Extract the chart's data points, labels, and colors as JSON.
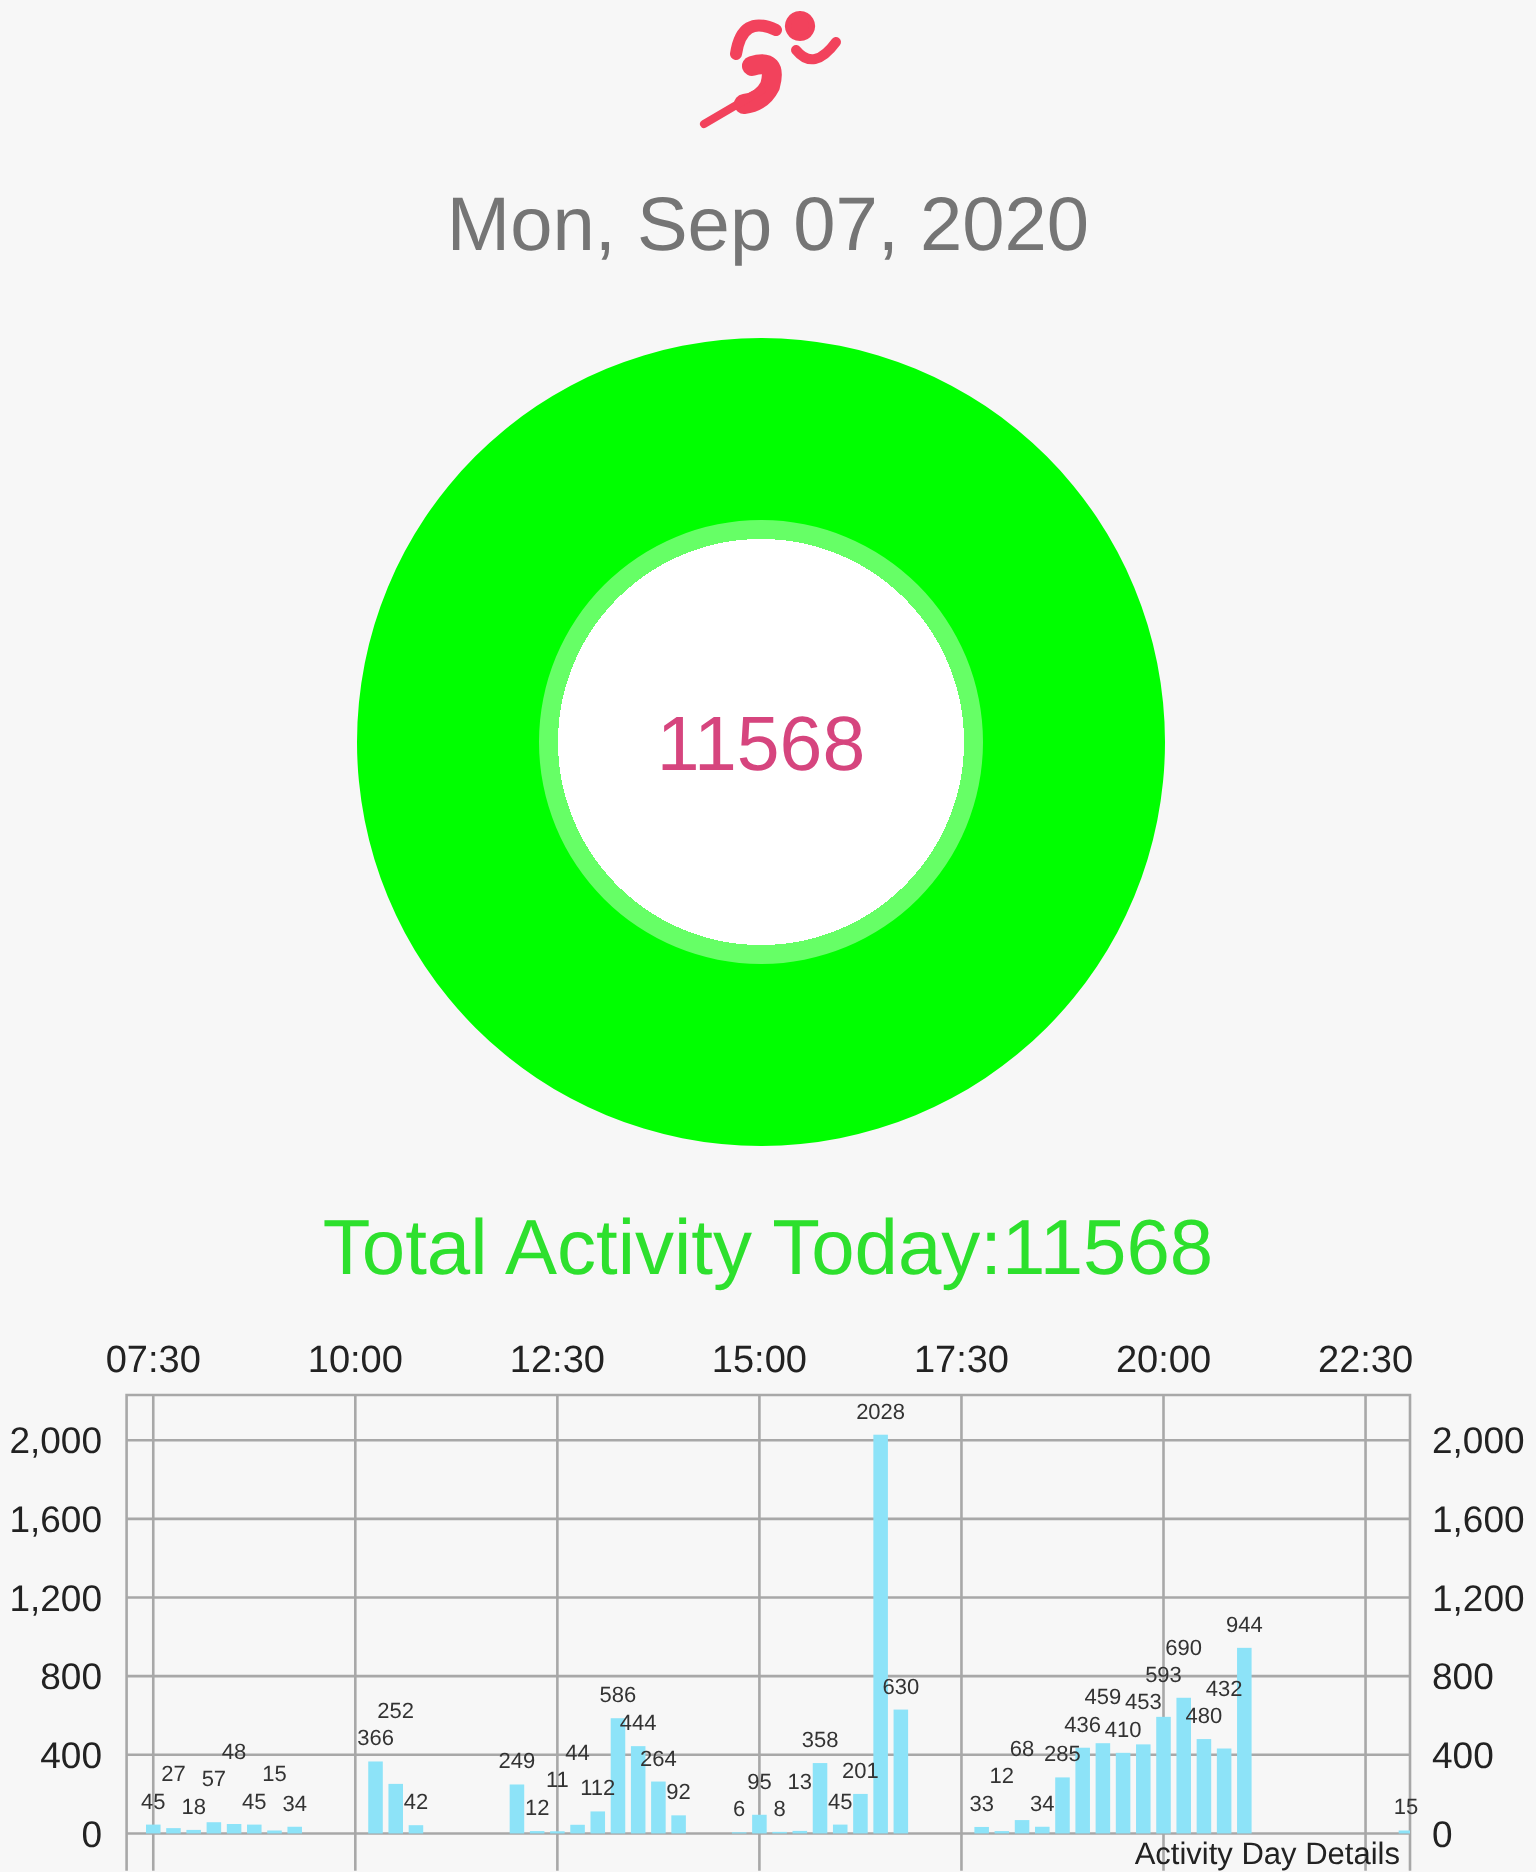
{
  "chart_data": [
    {
      "type": "donut",
      "title": "Mon, Sep 07, 2020",
      "categories": [
        null
      ],
      "values": [
        100
      ],
      "colors": [
        "#00ff00"
      ],
      "annotations": [
        "11568"
      ]
    },
    {
      "type": "bar",
      "title": "Total Activity Today:11568",
      "x": [
        7.5,
        7.75,
        8,
        8.25,
        8.5,
        8.75,
        9,
        9.25,
        10.25,
        10.5,
        10.75,
        12,
        12.25,
        12.5,
        12.75,
        13,
        13.25,
        13.5,
        13.75,
        14,
        14.75,
        15,
        15.25,
        15.5,
        15.75,
        16,
        16.25,
        16.5,
        16.75,
        17.75,
        18,
        18.25,
        18.5,
        18.75,
        19,
        19.25,
        19.5,
        19.75,
        20,
        20.25,
        20.5,
        20.75,
        21,
        23
      ],
      "values": [
        45,
        27,
        18,
        57,
        48,
        45,
        15,
        34,
        366,
        252,
        42,
        249,
        12,
        11,
        44,
        112,
        586,
        444,
        264,
        92,
        6,
        95,
        8,
        13,
        358,
        45,
        201,
        2028,
        630,
        33,
        12,
        68,
        34,
        285,
        436,
        459,
        410,
        453,
        593,
        690,
        480,
        432,
        944,
        15
      ],
      "color": "#8de3f8",
      "xlim": [
        7.17,
        23.05
      ],
      "xticks": [
        {
          "value": 7.5,
          "label": "07:30"
        },
        {
          "value": 10,
          "label": "10:00"
        },
        {
          "value": 12.5,
          "label": "12:30"
        },
        {
          "value": 15,
          "label": "15:00"
        },
        {
          "value": 17.5,
          "label": "17:30"
        },
        {
          "value": 20,
          "label": "20:00"
        },
        {
          "value": 22.5,
          "label": "22:30"
        }
      ],
      "ylim": [
        -190,
        2230
      ],
      "yticks": [
        0,
        400,
        800,
        {
          "value": 1200,
          "label": "1,200"
        },
        {
          "value": 1600,
          "label": "1,600"
        },
        {
          "value": 2000,
          "label": "2,000"
        }
      ],
      "y2lim": [
        -190,
        2230
      ],
      "y2ticks": [
        0,
        400,
        800,
        {
          "value": 1200,
          "label": "1,200"
        },
        {
          "value": 1600,
          "label": "1,600"
        },
        {
          "value": 2000,
          "label": "2,000"
        }
      ],
      "grid": true,
      "data_labels": true,
      "annotations": [
        "Activity Day Details"
      ]
    }
  ]
}
